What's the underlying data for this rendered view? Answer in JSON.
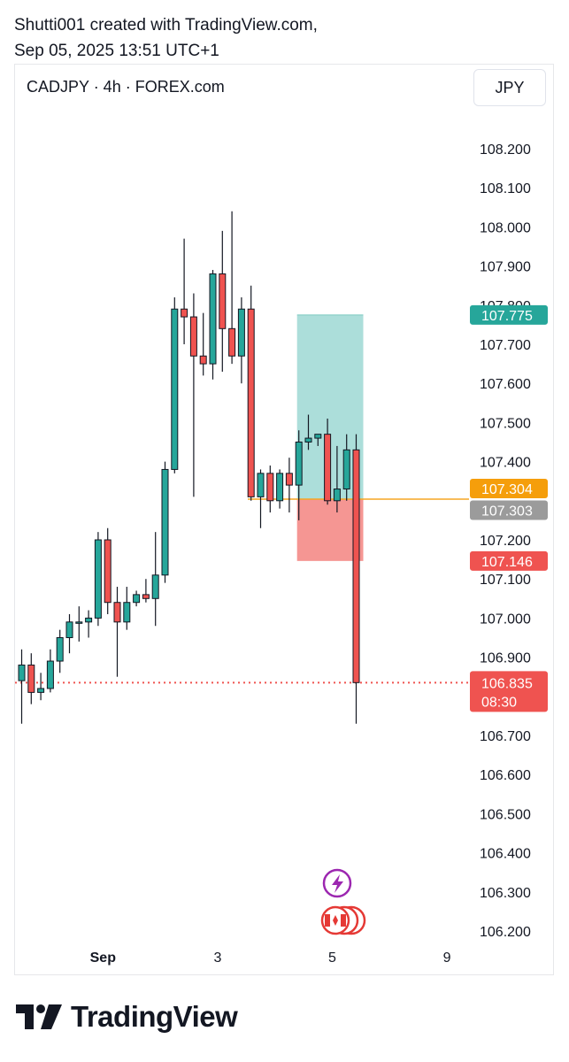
{
  "header": {
    "line1": "Shutti001 created with TradingView.com,",
    "line2": "Sep 05, 2025 13:51 UTC+1"
  },
  "symbol_label": "CADJPY · 4h · FOREX.com",
  "currency_button": "JPY",
  "footer": {
    "brand": "TradingView"
  },
  "colors": {
    "bull": "#26a69a",
    "bear": "#ef5350",
    "profit_zone": "#a8dcd8",
    "loss_zone": "#f4908d",
    "entry_line": "#f5a623",
    "text": "#131722"
  },
  "chart_data": {
    "type": "candlestick",
    "symbol": "CADJPY",
    "interval": "4h",
    "source": "FOREX.com",
    "currency": "JPY",
    "ylim": [
      106.155,
      108.26
    ],
    "y_ticks": [
      "108.200",
      "108.100",
      "108.000",
      "107.900",
      "107.800",
      "107.700",
      "107.600",
      "107.500",
      "107.400",
      "107.200",
      "107.100",
      "107.000",
      "106.900",
      "106.700",
      "106.600",
      "106.500",
      "106.400",
      "106.300",
      "106.200"
    ],
    "x_ticks": [
      {
        "label": "Sep",
        "index": 8.5
      },
      {
        "label": "3",
        "index": 20.5
      },
      {
        "label": "5",
        "index": 32.5
      },
      {
        "label": "9",
        "index": 44.5
      }
    ],
    "candles": [
      {
        "o": 106.84,
        "h": 106.92,
        "l": 106.73,
        "c": 106.88
      },
      {
        "o": 106.88,
        "h": 106.91,
        "l": 106.78,
        "c": 106.81
      },
      {
        "o": 106.81,
        "h": 106.86,
        "l": 106.79,
        "c": 106.82
      },
      {
        "o": 106.82,
        "h": 106.92,
        "l": 106.81,
        "c": 106.89
      },
      {
        "o": 106.89,
        "h": 106.97,
        "l": 106.86,
        "c": 106.95
      },
      {
        "o": 106.95,
        "h": 107.01,
        "l": 106.91,
        "c": 106.99
      },
      {
        "o": 106.99,
        "h": 107.03,
        "l": 106.94,
        "c": 106.99
      },
      {
        "o": 106.99,
        "h": 107.02,
        "l": 106.95,
        "c": 107.0
      },
      {
        "o": 107.0,
        "h": 107.22,
        "l": 106.98,
        "c": 107.2
      },
      {
        "o": 107.2,
        "h": 107.23,
        "l": 107.01,
        "c": 107.04
      },
      {
        "o": 107.04,
        "h": 107.08,
        "l": 106.85,
        "c": 106.99
      },
      {
        "o": 106.99,
        "h": 107.08,
        "l": 106.97,
        "c": 107.04
      },
      {
        "o": 107.04,
        "h": 107.07,
        "l": 107.03,
        "c": 107.06
      },
      {
        "o": 107.06,
        "h": 107.1,
        "l": 107.04,
        "c": 107.05
      },
      {
        "o": 107.05,
        "h": 107.22,
        "l": 106.98,
        "c": 107.11
      },
      {
        "o": 107.11,
        "h": 107.4,
        "l": 107.09,
        "c": 107.38
      },
      {
        "o": 107.38,
        "h": 107.82,
        "l": 107.37,
        "c": 107.79
      },
      {
        "o": 107.79,
        "h": 107.97,
        "l": 107.7,
        "c": 107.77
      },
      {
        "o": 107.77,
        "h": 107.83,
        "l": 107.31,
        "c": 107.67
      },
      {
        "o": 107.67,
        "h": 107.78,
        "l": 107.62,
        "c": 107.65
      },
      {
        "o": 107.65,
        "h": 107.89,
        "l": 107.61,
        "c": 107.88
      },
      {
        "o": 107.88,
        "h": 107.99,
        "l": 107.63,
        "c": 107.74
      },
      {
        "o": 107.74,
        "h": 108.04,
        "l": 107.65,
        "c": 107.67
      },
      {
        "o": 107.67,
        "h": 107.82,
        "l": 107.6,
        "c": 107.79
      },
      {
        "o": 107.79,
        "h": 107.85,
        "l": 107.3,
        "c": 107.31
      },
      {
        "o": 107.31,
        "h": 107.38,
        "l": 107.23,
        "c": 107.37
      },
      {
        "o": 107.37,
        "h": 107.39,
        "l": 107.27,
        "c": 107.3
      },
      {
        "o": 107.3,
        "h": 107.38,
        "l": 107.28,
        "c": 107.37
      },
      {
        "o": 107.37,
        "h": 107.41,
        "l": 107.27,
        "c": 107.34
      },
      {
        "o": 107.34,
        "h": 107.48,
        "l": 107.25,
        "c": 107.45
      },
      {
        "o": 107.45,
        "h": 107.52,
        "l": 107.43,
        "c": 107.46
      },
      {
        "o": 107.46,
        "h": 107.47,
        "l": 107.44,
        "c": 107.47
      },
      {
        "o": 107.47,
        "h": 107.51,
        "l": 107.29,
        "c": 107.3
      },
      {
        "o": 107.3,
        "h": 107.44,
        "l": 107.27,
        "c": 107.33
      },
      {
        "o": 107.33,
        "h": 107.47,
        "l": 107.3,
        "c": 107.43
      },
      {
        "o": 107.43,
        "h": 107.47,
        "l": 106.73,
        "c": 106.835
      }
    ],
    "position": {
      "start_index": 29,
      "end_index": 35,
      "entry": 107.304,
      "target": 107.775,
      "stop": 107.146
    },
    "price_labels": [
      {
        "value": 107.775,
        "text": "107.775",
        "color": "#26a69a"
      },
      {
        "value": 107.304,
        "text": "107.304",
        "color": "#f59e0b"
      },
      {
        "value": 107.303,
        "text": "107.303",
        "color": "#9b9b9b"
      },
      {
        "value": 107.146,
        "text": "107.146",
        "color": "#ef5350"
      }
    ],
    "last_price": {
      "value": 106.835,
      "text": "106.835",
      "countdown": "08:30",
      "color": "#ef5350"
    }
  }
}
